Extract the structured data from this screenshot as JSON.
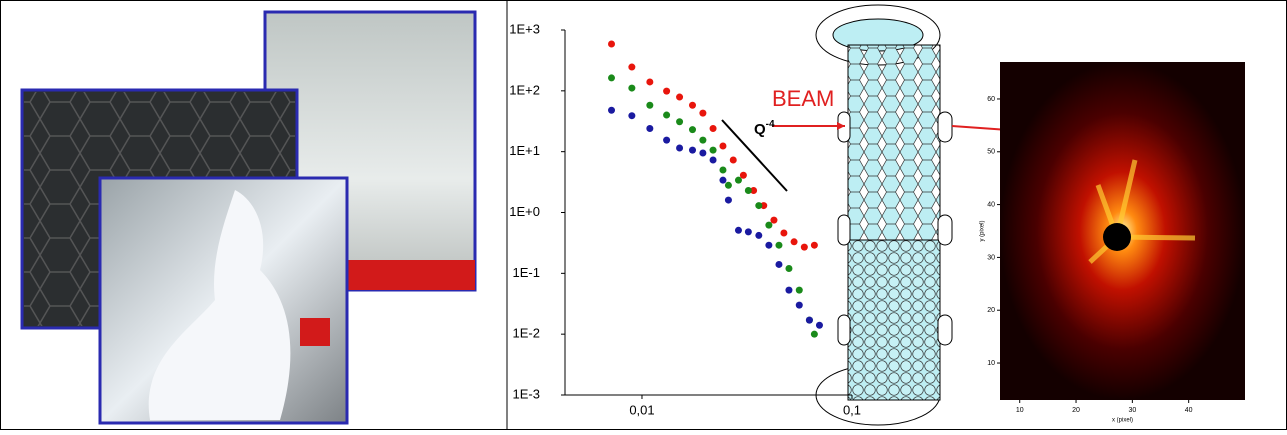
{
  "chart_data": {
    "type": "scatter",
    "log_x": true,
    "log_y": true,
    "xlim": [
      0.0043,
      0.1
    ],
    "ylim": [
      0.001,
      1000
    ],
    "xticks": [
      {
        "value": 0.01,
        "label": "0,01"
      },
      {
        "value": 0.1,
        "label": "0,1"
      }
    ],
    "yticks": [
      {
        "value": 1000,
        "label": "1E+3"
      },
      {
        "value": 100,
        "label": "1E+2"
      },
      {
        "value": 10,
        "label": "1E+1"
      },
      {
        "value": 1,
        "label": "1E+0"
      },
      {
        "value": 0.1,
        "label": "1E-1"
      },
      {
        "value": 0.01,
        "label": "1E-2"
      },
      {
        "value": 0.001,
        "label": "1E-3"
      }
    ],
    "annotation": {
      "text": "Q",
      "superscript": "-4"
    },
    "series": [
      {
        "color": "#e8150c",
        "x": [
          0.00716,
          0.00895,
          0.0109,
          0.0131,
          0.0151,
          0.0174,
          0.0195,
          0.0218,
          0.0243,
          0.0272,
          0.0304,
          0.034,
          0.038,
          0.0425,
          0.0474,
          0.053,
          0.0593,
          0.0662
        ],
        "values": [
          589,
          246,
          140,
          99,
          79,
          58,
          43,
          24,
          12.4,
          7.3,
          4.1,
          2.3,
          1.3,
          0.75,
          0.46,
          0.33,
          0.27,
          0.29
        ]
      },
      {
        "color": "#1a8a1a",
        "x": [
          0.00716,
          0.00895,
          0.0109,
          0.0131,
          0.0151,
          0.0174,
          0.0195,
          0.0218,
          0.0243,
          0.0258,
          0.0288,
          0.0321,
          0.036,
          0.0402,
          0.0449,
          0.0501,
          0.0561,
          0.0627,
          0.0662
        ],
        "values": [
          163,
          111,
          58,
          40,
          31,
          23,
          15.5,
          10.6,
          5.0,
          2.8,
          3.4,
          2.3,
          1.3,
          0.62,
          0.29,
          0.12,
          0.053,
          0.017,
          0.01
        ]
      },
      {
        "color": "#1a1aa0",
        "x": [
          0.00716,
          0.00895,
          0.0109,
          0.0131,
          0.0151,
          0.0174,
          0.0195,
          0.0218,
          0.0243,
          0.0258,
          0.0288,
          0.0321,
          0.036,
          0.0402,
          0.0449,
          0.0501,
          0.0561,
          0.0627,
          0.07
        ],
        "values": [
          48,
          39,
          24,
          15.5,
          11.5,
          10.6,
          9.5,
          7.3,
          3.4,
          1.6,
          0.51,
          0.48,
          0.42,
          0.29,
          0.14,
          0.053,
          0.03,
          0.017,
          0.014
        ]
      }
    ]
  },
  "diagram": {
    "beam_label": "BEAM"
  },
  "detector": {
    "xlabel": "x (pixel)",
    "ylabel": "y (pixel)",
    "xlim": [
      6.5,
      50
    ],
    "ylim": [
      3,
      67
    ],
    "xticks": [
      10,
      20,
      30,
      40
    ],
    "yticks": [
      10,
      20,
      30,
      40,
      50,
      60
    ]
  }
}
